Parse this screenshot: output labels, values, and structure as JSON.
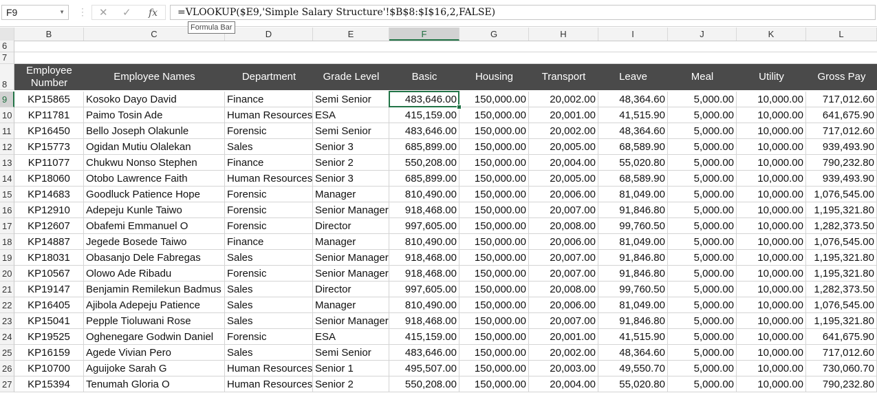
{
  "formula_bar": {
    "name_box": "F9",
    "cancel_icon": "✕",
    "enter_icon": "✓",
    "fx_label": "fx",
    "formula": "=VLOOKUP($E9,'Simple Salary Structure'!$B$8:$I$16,2,FALSE)",
    "tooltip": "Formula Bar"
  },
  "columns": [
    "B",
    "C",
    "D",
    "E",
    "F",
    "G",
    "H",
    "I",
    "J",
    "K",
    "L"
  ],
  "selected_column": "F",
  "selected_row": "9",
  "top_rows": [
    "6",
    "7"
  ],
  "header_row_number": "8",
  "headers": [
    "Employee Number",
    "Employee Names",
    "Department",
    "Grade Level",
    "Basic",
    "Housing",
    "Transport",
    "Leave",
    "Meal",
    "Utility",
    "Gross Pay"
  ],
  "rows": [
    {
      "n": "9",
      "cells": [
        "KP15865",
        "Kosoko Dayo David",
        "Finance",
        "Semi Senior",
        "483,646.00",
        "150,000.00",
        "20,002.00",
        "48,364.60",
        "5,000.00",
        "10,000.00",
        "717,012.60"
      ]
    },
    {
      "n": "10",
      "cells": [
        "KP11781",
        "Paimo Tosin Ade",
        "Human Resources",
        "ESA",
        "415,159.00",
        "150,000.00",
        "20,001.00",
        "41,515.90",
        "5,000.00",
        "10,000.00",
        "641,675.90"
      ]
    },
    {
      "n": "11",
      "cells": [
        "KP16450",
        "Bello Joseph Olakunle",
        "Forensic",
        "Semi Senior",
        "483,646.00",
        "150,000.00",
        "20,002.00",
        "48,364.60",
        "5,000.00",
        "10,000.00",
        "717,012.60"
      ]
    },
    {
      "n": "12",
      "cells": [
        "KP15773",
        "Ogidan Mutiu Olalekan",
        "Sales",
        "Senior 3",
        "685,899.00",
        "150,000.00",
        "20,005.00",
        "68,589.90",
        "5,000.00",
        "10,000.00",
        "939,493.90"
      ]
    },
    {
      "n": "13",
      "cells": [
        "KP11077",
        "Chukwu Nonso Stephen",
        "Finance",
        "Senior 2",
        "550,208.00",
        "150,000.00",
        "20,004.00",
        "55,020.80",
        "5,000.00",
        "10,000.00",
        "790,232.80"
      ]
    },
    {
      "n": "14",
      "cells": [
        "KP18060",
        "Otobo Lawrence Faith",
        "Human Resources",
        "Senior 3",
        "685,899.00",
        "150,000.00",
        "20,005.00",
        "68,589.90",
        "5,000.00",
        "10,000.00",
        "939,493.90"
      ]
    },
    {
      "n": "15",
      "cells": [
        "KP14683",
        "Goodluck Patience Hope",
        "Forensic",
        "Manager",
        "810,490.00",
        "150,000.00",
        "20,006.00",
        "81,049.00",
        "5,000.00",
        "10,000.00",
        "1,076,545.00"
      ]
    },
    {
      "n": "16",
      "cells": [
        "KP12910",
        "Adepeju Kunle Taiwo",
        "Forensic",
        "Senior Manager",
        "918,468.00",
        "150,000.00",
        "20,007.00",
        "91,846.80",
        "5,000.00",
        "10,000.00",
        "1,195,321.80"
      ]
    },
    {
      "n": "17",
      "cells": [
        "KP12607",
        "Obafemi Emmanuel O",
        "Forensic",
        "Director",
        "997,605.00",
        "150,000.00",
        "20,008.00",
        "99,760.50",
        "5,000.00",
        "10,000.00",
        "1,282,373.50"
      ]
    },
    {
      "n": "18",
      "cells": [
        "KP14887",
        "Jegede Bosede Taiwo",
        "Finance",
        "Manager",
        "810,490.00",
        "150,000.00",
        "20,006.00",
        "81,049.00",
        "5,000.00",
        "10,000.00",
        "1,076,545.00"
      ]
    },
    {
      "n": "19",
      "cells": [
        "KP18031",
        "Obasanjo Dele Fabregas",
        "Sales",
        "Senior Manager",
        "918,468.00",
        "150,000.00",
        "20,007.00",
        "91,846.80",
        "5,000.00",
        "10,000.00",
        "1,195,321.80"
      ]
    },
    {
      "n": "20",
      "cells": [
        "KP10567",
        "Olowo Ade Ribadu",
        "Forensic",
        "Senior Manager",
        "918,468.00",
        "150,000.00",
        "20,007.00",
        "91,846.80",
        "5,000.00",
        "10,000.00",
        "1,195,321.80"
      ]
    },
    {
      "n": "21",
      "cells": [
        "KP19147",
        "Benjamin Remilekun Badmus",
        "Sales",
        "Director",
        "997,605.00",
        "150,000.00",
        "20,008.00",
        "99,760.50",
        "5,000.00",
        "10,000.00",
        "1,282,373.50"
      ]
    },
    {
      "n": "22",
      "cells": [
        "KP16405",
        "Ajibola Adepeju Patience",
        "Sales",
        "Manager",
        "810,490.00",
        "150,000.00",
        "20,006.00",
        "81,049.00",
        "5,000.00",
        "10,000.00",
        "1,076,545.00"
      ]
    },
    {
      "n": "23",
      "cells": [
        "KP15041",
        "Pepple Tioluwani Rose",
        "Sales",
        "Senior Manager",
        "918,468.00",
        "150,000.00",
        "20,007.00",
        "91,846.80",
        "5,000.00",
        "10,000.00",
        "1,195,321.80"
      ]
    },
    {
      "n": "24",
      "cells": [
        "KP19525",
        "Oghenegare Godwin Daniel",
        "Forensic",
        "ESA",
        "415,159.00",
        "150,000.00",
        "20,001.00",
        "41,515.90",
        "5,000.00",
        "10,000.00",
        "641,675.90"
      ]
    },
    {
      "n": "25",
      "cells": [
        "KP16159",
        "Agede Vivian Pero",
        "Sales",
        "Semi Senior",
        "483,646.00",
        "150,000.00",
        "20,002.00",
        "48,364.60",
        "5,000.00",
        "10,000.00",
        "717,012.60"
      ]
    },
    {
      "n": "26",
      "cells": [
        "KP10700",
        "Aguijoke Sarah G",
        "Human Resources",
        "Senior 1",
        "495,507.00",
        "150,000.00",
        "20,003.00",
        "49,550.70",
        "5,000.00",
        "10,000.00",
        "730,060.70"
      ]
    },
    {
      "n": "27",
      "cells": [
        "KP15394",
        "Tenumah Gloria O",
        "Human Resources",
        "Senior 2",
        "550,208.00",
        "150,000.00",
        "20,004.00",
        "55,020.80",
        "5,000.00",
        "10,000.00",
        "790,232.80"
      ]
    }
  ]
}
